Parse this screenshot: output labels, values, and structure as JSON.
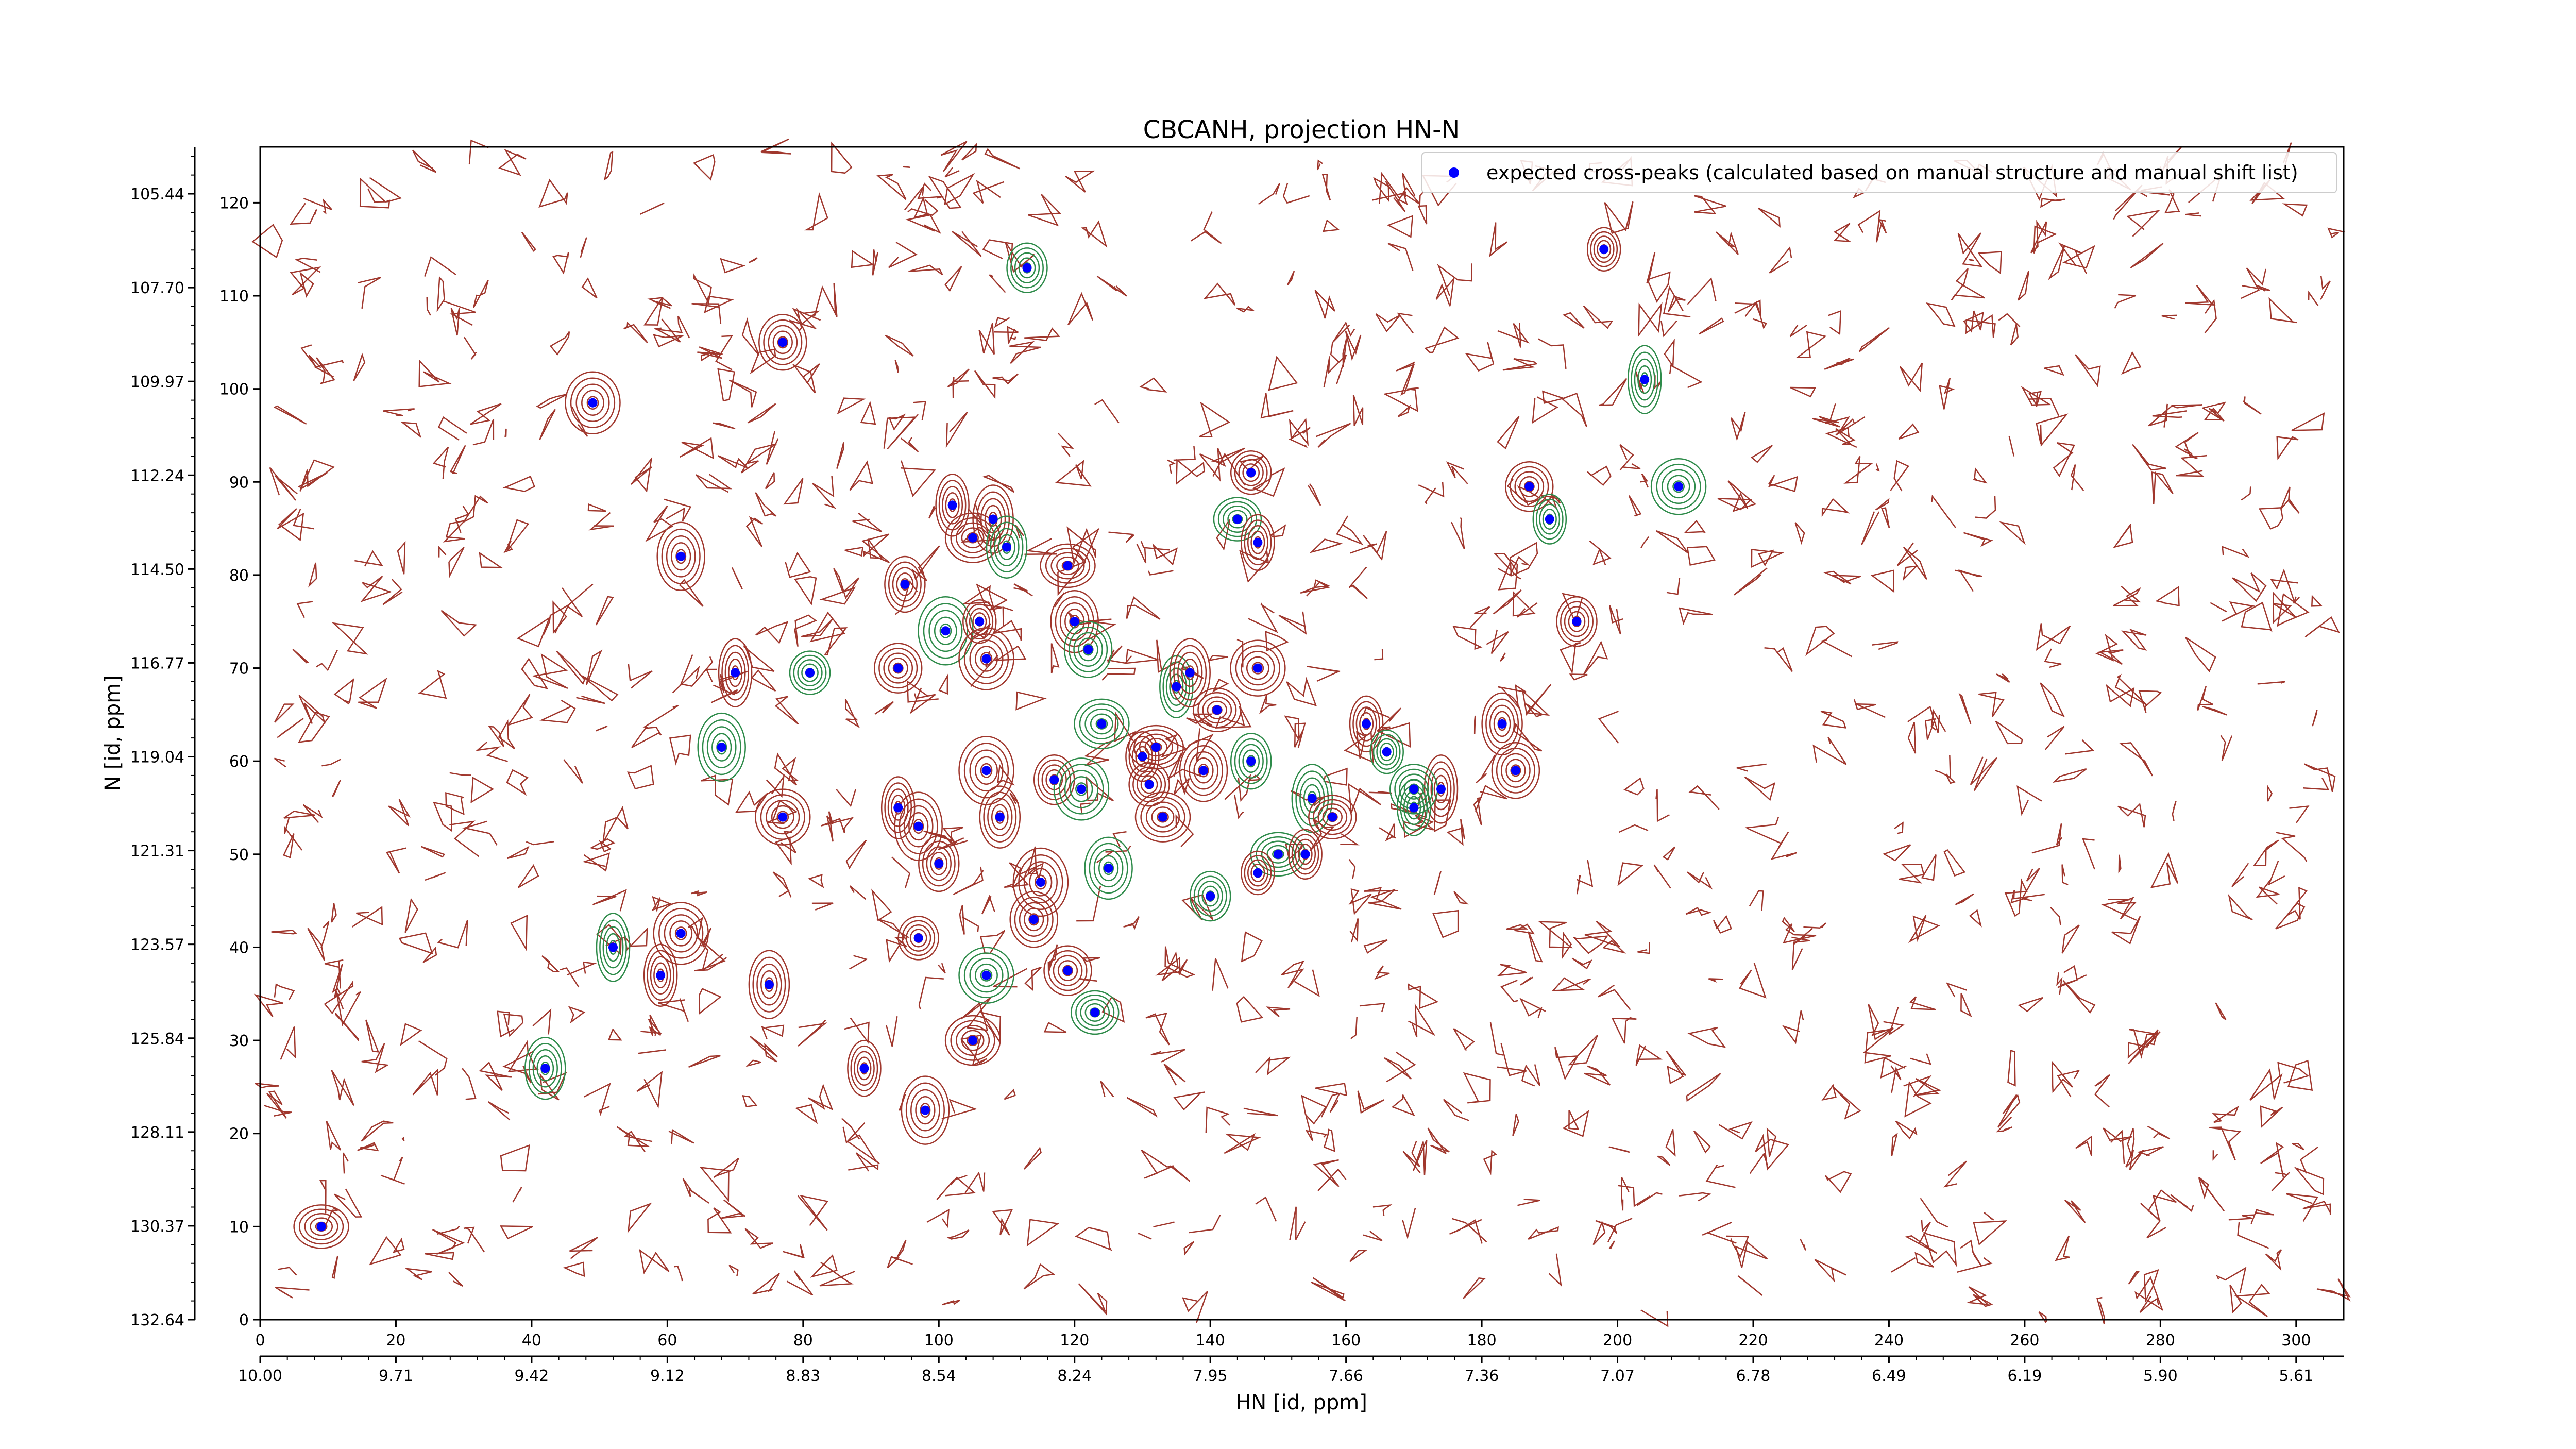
{
  "chart_data": {
    "type": "scatter",
    "title": "CBCANH, projection HN-N",
    "xlabel": "HN [id, ppm]",
    "ylabel": "N [id, ppm]",
    "xlim": [
      0,
      307
    ],
    "ylim": [
      0,
      126
    ],
    "x_ticks": [
      0,
      20,
      40,
      60,
      80,
      100,
      120,
      140,
      160,
      180,
      200,
      220,
      240,
      260,
      280,
      300
    ],
    "y_ticks": [
      0,
      10,
      20,
      30,
      40,
      50,
      60,
      70,
      80,
      90,
      100,
      110,
      120
    ],
    "secondary_x_ticks": [
      "10.00",
      "9.71",
      "9.42",
      "9.12",
      "8.83",
      "8.54",
      "8.24",
      "7.95",
      "7.66",
      "7.36",
      "7.07",
      "6.78",
      "6.49",
      "6.19",
      "5.90",
      "5.61"
    ],
    "secondary_y_ticks": [
      "132.64",
      "130.37",
      "128.11",
      "125.84",
      "123.57",
      "121.31",
      "119.04",
      "116.77",
      "114.50",
      "112.24",
      "109.97",
      "107.70",
      "105.44"
    ],
    "legend": {
      "placement": "top-right",
      "label": "expected cross-peaks (calculated based on manual structure and manual shift list)"
    },
    "colors": {
      "marker": "#0000ff",
      "contour_positive": "#a0372d",
      "contour_negative": "#2e8b4a"
    },
    "series": [
      {
        "name": "expected cross-peaks (calculated based on manual structure and manual shift list)",
        "points": [
          [
            198,
            115
          ],
          [
            113,
            113
          ],
          [
            77,
            105
          ],
          [
            49,
            98.5
          ],
          [
            204,
            101
          ],
          [
            146,
            91
          ],
          [
            187,
            89.5
          ],
          [
            209,
            89.5
          ],
          [
            102,
            87.5
          ],
          [
            108,
            86
          ],
          [
            144,
            86
          ],
          [
            105,
            84
          ],
          [
            147,
            83.5
          ],
          [
            110,
            83
          ],
          [
            62,
            82
          ],
          [
            119,
            81
          ],
          [
            190,
            86
          ],
          [
            95,
            79
          ],
          [
            120,
            75
          ],
          [
            101,
            74
          ],
          [
            106,
            75
          ],
          [
            194,
            75
          ],
          [
            122,
            72
          ],
          [
            107,
            71
          ],
          [
            70,
            69.5
          ],
          [
            81,
            69.5
          ],
          [
            94,
            70
          ],
          [
            147,
            70
          ],
          [
            135,
            68
          ],
          [
            137,
            69.5
          ],
          [
            141,
            65.5
          ],
          [
            124,
            64
          ],
          [
            163,
            64
          ],
          [
            183,
            64
          ],
          [
            68,
            61.5
          ],
          [
            132,
            61.5
          ],
          [
            130,
            60.5
          ],
          [
            146,
            60
          ],
          [
            139,
            59
          ],
          [
            107,
            59
          ],
          [
            166,
            61
          ],
          [
            117,
            58
          ],
          [
            185,
            59
          ],
          [
            121,
            57
          ],
          [
            174,
            57
          ],
          [
            131,
            57.5
          ],
          [
            170,
            57
          ],
          [
            77,
            54
          ],
          [
            94,
            55
          ],
          [
            155,
            56
          ],
          [
            158,
            54
          ],
          [
            133,
            54
          ],
          [
            170,
            55
          ],
          [
            109,
            54
          ],
          [
            97,
            53
          ],
          [
            150,
            50
          ],
          [
            154,
            50
          ],
          [
            100,
            49
          ],
          [
            125,
            48.5
          ],
          [
            115,
            47
          ],
          [
            147,
            48
          ],
          [
            140,
            45.5
          ],
          [
            114,
            43
          ],
          [
            62,
            41.5
          ],
          [
            52,
            40
          ],
          [
            97,
            41
          ],
          [
            119,
            37.5
          ],
          [
            107,
            37
          ],
          [
            59,
            37
          ],
          [
            75,
            36
          ],
          [
            123,
            33
          ],
          [
            105,
            30
          ],
          [
            89,
            27
          ],
          [
            42,
            27
          ],
          [
            98,
            22.5
          ],
          [
            9,
            10
          ]
        ]
      }
    ]
  }
}
